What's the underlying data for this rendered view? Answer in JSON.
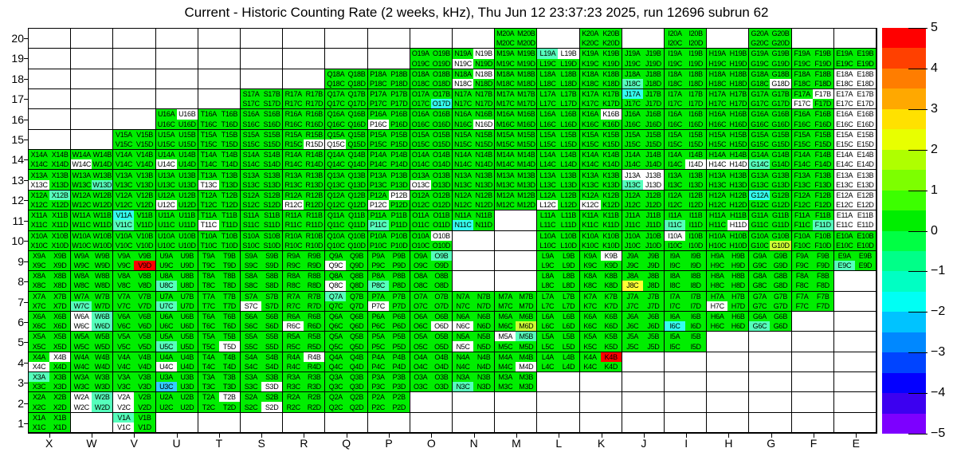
{
  "title": "Current - Historic Counting Rate (2 weeks, kHz), Thu Jun 12 23:37:23 2025, run 12696 subrun 62",
  "chart_data": {
    "type": "heatmap",
    "title": "Current - Historic Counting Rate (2 weeks, kHz), Thu Jun 12 23:37:23 2025, run 12696 subrun 62",
    "x_categories": [
      "X",
      "W",
      "V",
      "U",
      "T",
      "S",
      "R",
      "Q",
      "P",
      "O",
      "N",
      "M",
      "L",
      "K",
      "J",
      "I",
      "H",
      "G",
      "F",
      "E"
    ],
    "y_categories": [
      "20",
      "19",
      "18",
      "17",
      "16",
      "15",
      "14",
      "13",
      "12",
      "11",
      "10",
      "9",
      "8",
      "7",
      "6",
      "5",
      "4",
      "3",
      "2",
      "1"
    ],
    "quadrants": [
      "A",
      "B",
      "C",
      "D"
    ],
    "value_unit": "kHz",
    "legend": {
      "position": "right",
      "min": -5,
      "max": 5,
      "tick_values": [
        5,
        4,
        3,
        2,
        1,
        0,
        -1,
        -2,
        -3,
        -4,
        -5
      ],
      "tick_labels": [
        "5",
        "4",
        "3",
        "2",
        "1",
        "0",
        "−1",
        "−2",
        "−3",
        "−4",
        "−5"
      ],
      "band_colors": [
        "#FF0000",
        "#FF4000",
        "#FF7D00",
        "#FFA800",
        "#FFE100",
        "#E8FF00",
        "#AFFF00",
        "#7DFF00",
        "#3CFF00",
        "#00EE00",
        "#00FF44",
        "#00FF88",
        "#00FFC3",
        "#00FFF4",
        "#00C3FF",
        "#0088FF",
        "#0044FF",
        "#0400FF",
        "#3C00F0",
        "#7D00FF"
      ]
    },
    "color_codes": {
      "g": "#00EE00",
      "s": "#55FFBB",
      "c": "#33FFEE",
      "b": "#33CCFF",
      "y": "#FFFF33",
      "l": "#CCFF33",
      "r": "#FF0000",
      "w": "#FFFFFF"
    },
    "cells": {
      "M20": "gggg",
      "K20": "gggg",
      "I20": "gggg",
      "G20": "gggg",
      "O19": "gggg",
      "N19": "gwwg",
      "M19": "gggg",
      "L19": "swgg",
      "K19": "gggg",
      "J19": "gggg",
      "I19": "gggg",
      "H19": "gggg",
      "G19": "gggg",
      "F19": "gggg",
      "E19": "gggg",
      "Q18": "gggg",
      "P18": "gggg",
      "O18": "gggg",
      "N18": "gwwg",
      "M18": "gggg",
      "L18": "gggg",
      "K18": "gggg",
      "J18": "ggsg",
      "I18": "gggg",
      "H18": "gggg",
      "G18": "gggw",
      "F18": "gggg",
      "E18": "wwww",
      "S17": "gggg",
      "R17": "gggg",
      "Q17": "gggg",
      "P17": "gggg",
      "O17": "gggc",
      "N17": "gggg",
      "M17": "gggg",
      "L17": "gggg",
      "K17": "gggg",
      "J17": "cggg",
      "I17": "gggg",
      "H17": "gggg",
      "G17": "gggg",
      "F17": "gwwg",
      "E17": "wwww",
      "U16": "gwgg",
      "T16": "gggg",
      "S16": "gggg",
      "R16": "gggg",
      "Q16": "gggg",
      "P16": "ggwg",
      "O16": "gggg",
      "N16": "gggw",
      "M16": "gggg",
      "L16": "gggg",
      "K16": "gwgg",
      "J16": "gggg",
      "I16": "gggg",
      "H16": "gggg",
      "G16": "gggg",
      "F16": "gggg",
      "E16": "wwww",
      "V15": "gggg",
      "U15": "gggg",
      "T15": "gggg",
      "S15": "gggg",
      "R15": "gggw",
      "Q15": "ggwg",
      "P15": "gggg",
      "O15": "gggg",
      "N15": "gggg",
      "M15": "gggg",
      "L15": "gggg",
      "K15": "gggg",
      "J15": "gggg",
      "I15": "gggg",
      "H15": "gggg",
      "G15": "gggg",
      "F15": "gggg",
      "E15": "wwww",
      "X14": "gggg",
      "W14": "ggwg",
      "V14": "gggg",
      "U14": "ggwg",
      "T14": "gggg",
      "S14": "gggg",
      "R14": "gggg",
      "Q14": "gggg",
      "P14": "gggg",
      "O14": "gggg",
      "N14": "gggg",
      "M14": "gggg",
      "L14": "gggg",
      "K14": "gggg",
      "J14": "gggg",
      "I14": "gggw",
      "H14": "ggww",
      "G14": "ggsg",
      "F14": "gggg",
      "E14": "wwww",
      "X13": "ggwg",
      "W13": "gggs",
      "V13": "gggg",
      "U13": "gggg",
      "T13": "ggwg",
      "S13": "gggg",
      "R13": "gggg",
      "Q13": "gggg",
      "P13": "gggg",
      "O13": "ggwg",
      "N13": "gggg",
      "M13": "gggg",
      "L13": "gggg",
      "K13": "gggg",
      "J13": "wwsw",
      "I13": "gggg",
      "H13": "gggg",
      "G13": "gggg",
      "F13": "gggg",
      "E13": "wwww",
      "X12": "gsgg",
      "W12": "gggg",
      "V12": "gggg",
      "U12": "ggwg",
      "T12": "gggg",
      "S12": "gggg",
      "R12": "ggwg",
      "Q12": "gggg",
      "P12": "gwwg",
      "O12": "gggg",
      "N12": "gggg",
      "M12": "gggg",
      "L12": "ggwg",
      "K12": "ggwg",
      "J12": "gggg",
      "I12": "gggg",
      "H12": "gggg",
      "G12": "cggg",
      "F12": "gggg",
      "E12": "wwww",
      "X11": "gggg",
      "W11": "gggg",
      "V11": "cgsg",
      "U11": "gggg",
      "T11": "ggwg",
      "S11": "gggg",
      "R11": "gggg",
      "Q11": "gggg",
      "P11": "ggsg",
      "O11": "gggg",
      "N11": "ggcg",
      "L11": "gggg",
      "K11": "gggg",
      "J11": "gggg",
      "I11": "ggsg",
      "H11": "gggw",
      "G11": "gggg",
      "F11": "gggs",
      "E11": "wwww",
      "X10": "gggg",
      "W10": "gggg",
      "V10": "gggg",
      "U10": "gggg",
      "T10": "gggg",
      "S10": "gggg",
      "R10": "gggg",
      "Q10": "gggg",
      "P10": "gggg",
      "O10": "gwgg",
      "L10": "gggg",
      "K10": "gggg",
      "J10": "gggg",
      "I10": "wggg",
      "H10": "gggg",
      "G10": "gggl",
      "F10": "gggg",
      "E10": "gggg",
      "X9": "gggg",
      "W9": "gggg",
      "V9": "gggr",
      "U9": "gggg",
      "T9": "gggg",
      "S9": "gggg",
      "R9": "gggg",
      "Q9": "ggwg",
      "P9": "gggg",
      "O9": "gsgg",
      "L9": "gggg",
      "K9": "gwgg",
      "J9": "gggg",
      "I9": "gggg",
      "H9": "gggg",
      "G9": "gggg",
      "F9": "gggg",
      "E9": "ggsg",
      "X8": "gggg",
      "W8": "gggg",
      "V8": "gggg",
      "U8": "ggsg",
      "T8": "gggg",
      "S8": "gggg",
      "R8": "gggg",
      "Q8": "ggwg",
      "P8": "ggsg",
      "O8": "gggg",
      "L8": "gggg",
      "K8": "gggg",
      "J8": "ggyg",
      "I8": "gggg",
      "H8": "gggg",
      "G8": "gggg",
      "F8": "gggg",
      "X7": "gggg",
      "W7": "ggsg",
      "V7": "gggg",
      "U7": "ggsg",
      "T7": "gggg",
      "S7": "ggwg",
      "R7": "gggg",
      "Q7": "sggg",
      "P7": "ggwg",
      "O7": "gggg",
      "N7": "gggg",
      "M7": "gggg",
      "L7": "gggg",
      "K7": "gggg",
      "J7": "gggg",
      "I7": "gggg",
      "H7": "ggwg",
      "G7": "gggg",
      "F7": "gggg",
      "X6": "gggg",
      "W6": "wsws",
      "V6": "gggg",
      "U6": "gggg",
      "T6": "gggg",
      "S6": "gggg",
      "R6": "ggwg",
      "Q6": "gggg",
      "P6": "gggg",
      "O6": "gggw",
      "N6": "ggwg",
      "M6": "gggl",
      "L6": "gggg",
      "K6": "gggg",
      "J6": "gggg",
      "I6": "ggcg",
      "H6": "gggg",
      "G6": "ggsg",
      "X5": "gggg",
      "W5": "gggg",
      "V5": "gggg",
      "U5": "ggsg",
      "T5": "gggw",
      "S5": "gggg",
      "R5": "gggg",
      "Q5": "gggg",
      "P5": "gggg",
      "O5": "gggg",
      "N5": "ggwg",
      "M5": "wsgg",
      "L5": "gggg",
      "K5": "gggg",
      "J5": "gggg",
      "I5": "gggg",
      "X4": "gwwg",
      "W4": "gggg",
      "V4": "gggg",
      "U4": "ggwg",
      "T4": "gggg",
      "S4": "gggg",
      "R4": "gwgg",
      "Q4": "gggg",
      "P4": "gggg",
      "O4": "gggg",
      "N4": "gggg",
      "M4": "gggw",
      "L4": "gggg",
      "K4": "grgg",
      "X3": "sggg",
      "W3": "gggg",
      "V3": "gggg",
      "U3": "ggbg",
      "T3": "gggg",
      "S3": "gggw",
      "R3": "gggg",
      "Q3": "gggg",
      "P3": "gggg",
      "O3": "gggg",
      "N3": "ggsg",
      "M3": "gggg",
      "X2": "gggg",
      "W2": "wsws",
      "V2": "wgwg",
      "U2": "gggg",
      "T2": "gwgg",
      "S2": "gggw",
      "R2": "gggg",
      "Q2": "gggg",
      "P2": "gggg",
      "X1": "gggg",
      "V1": "sgwg"
    }
  }
}
